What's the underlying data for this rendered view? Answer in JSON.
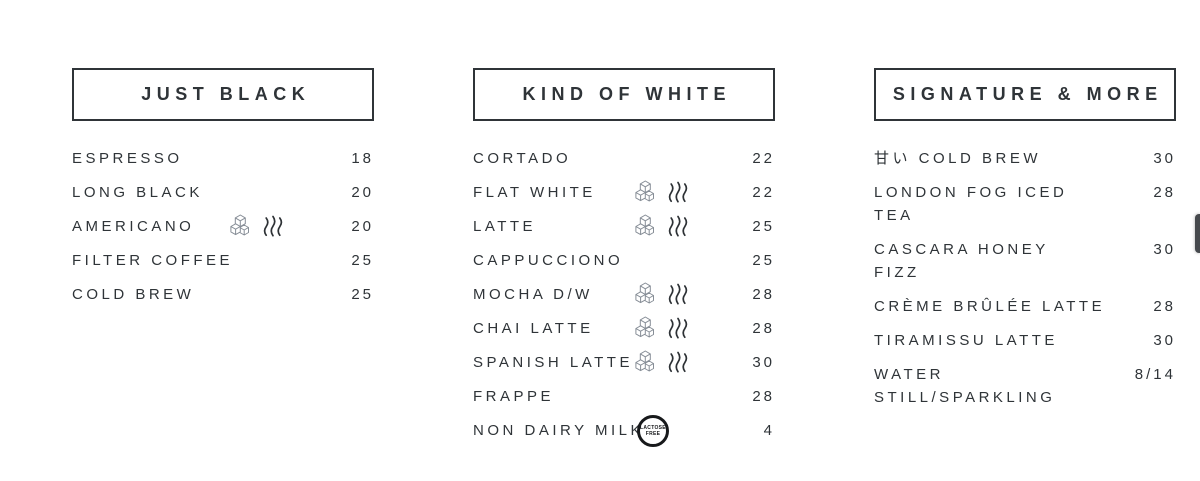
{
  "page": {
    "background": "#ffffff",
    "text_color": "#2f3438",
    "border_color": "#2f3438",
    "ice_icon_color": "#878e97",
    "steam_icon_color": "#2d3135"
  },
  "columns": [
    {
      "title": "JUST BLACK",
      "items": [
        {
          "name": "ESPRESSO",
          "price": "18",
          "icons": []
        },
        {
          "name": "LONG BLACK",
          "price": "20",
          "icons": []
        },
        {
          "name": "AMERICANO",
          "price": "20",
          "icons": [
            "ice-cubes-icon",
            "steam-icon"
          ]
        },
        {
          "name": "FILTER COFFEE",
          "price": "25",
          "icons": []
        },
        {
          "name": "COLD BREW",
          "price": "25",
          "icons": []
        }
      ]
    },
    {
      "title": "KIND OF WHITE",
      "items": [
        {
          "name": "CORTADO",
          "price": "22",
          "icons": []
        },
        {
          "name": "FLAT WHITE",
          "price": "22",
          "icons": [
            "ice-cubes-icon",
            "steam-icon"
          ]
        },
        {
          "name": "LATTE",
          "price": "25",
          "icons": [
            "ice-cubes-icon",
            "steam-icon"
          ]
        },
        {
          "name": "CAPPUCCIONO",
          "price": "25",
          "icons": []
        },
        {
          "name": "MOCHA D/W",
          "price": "28",
          "icons": [
            "ice-cubes-icon",
            "steam-icon"
          ]
        },
        {
          "name": "CHAI LATTE",
          "price": "28",
          "icons": [
            "ice-cubes-icon",
            "steam-icon"
          ]
        },
        {
          "name": "SPANISH LATTE",
          "price": "30",
          "icons": [
            "ice-cubes-icon",
            "steam-icon"
          ]
        },
        {
          "name": "FRAPPE",
          "price": "28",
          "icons": []
        },
        {
          "name": "NON DAIRY MILK",
          "price": "4",
          "icons": [
            "lactose-free-badge"
          ],
          "badge": "LACTOSE FREE"
        }
      ]
    },
    {
      "title": "SIGNATURE & MORE",
      "items": [
        {
          "name": "甘い COLD BREW",
          "price": "30",
          "icons": []
        },
        {
          "name": "LONDON FOG ICED\nTEA",
          "price": "28",
          "icons": []
        },
        {
          "name": "CASCARA HONEY\nFIZZ",
          "price": "30",
          "icons": []
        },
        {
          "name": "CRÈME BRÛLÉE LATTE",
          "price": "28",
          "icons": []
        },
        {
          "name": "TIRAMISSU LATTE",
          "price": "30",
          "icons": []
        },
        {
          "name": "WATER\nSTILL/SPARKLING",
          "price": "8/14",
          "icons": []
        }
      ]
    }
  ]
}
